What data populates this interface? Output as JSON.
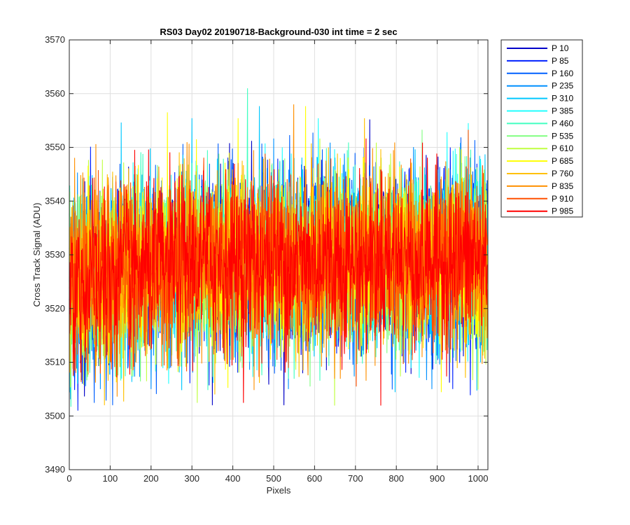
{
  "chart_data": {
    "type": "line",
    "title": "RS03 Day02 20190718-Background-030 int time = 2 sec",
    "xlabel": "Pixels",
    "ylabel": "Cross Track Signal (ADU)",
    "xlim": [
      0,
      1024
    ],
    "ylim": [
      3490,
      3570
    ],
    "xticks": [
      "0",
      "100",
      "200",
      "300",
      "400",
      "500",
      "600",
      "700",
      "800",
      "900",
      "1000"
    ],
    "yticks": [
      "3490",
      "3500",
      "3510",
      "3520",
      "3530",
      "3540",
      "3550",
      "3560",
      "3570"
    ],
    "grid": true,
    "legend_position": "outside-top-right",
    "n_points": 1024,
    "baseline_mean_left": 3524,
    "baseline_mean_right": 3529,
    "noise_std": 8,
    "series": [
      {
        "name": "P 10",
        "color": "#0000c8",
        "mean": 3528,
        "min": 3502,
        "max": 3558
      },
      {
        "name": "P 85",
        "color": "#0020ff",
        "mean": 3528,
        "min": 3501,
        "max": 3560
      },
      {
        "name": "P 160",
        "color": "#0060ff",
        "mean": 3528,
        "min": 3502,
        "max": 3566
      },
      {
        "name": "P 235",
        "color": "#0090ff",
        "mean": 3528,
        "min": 3505,
        "max": 3560
      },
      {
        "name": "P 310",
        "color": "#00c8ff",
        "mean": 3528,
        "min": 3503,
        "max": 3566
      },
      {
        "name": "P 385",
        "color": "#20ffff",
        "mean": 3528,
        "min": 3506,
        "max": 3567
      },
      {
        "name": "P 460",
        "color": "#40ffc0",
        "mean": 3528,
        "min": 3498,
        "max": 3561
      },
      {
        "name": "P 535",
        "color": "#80ff80",
        "mean": 3528,
        "min": 3497,
        "max": 3567
      },
      {
        "name": "P 610",
        "color": "#c0ff40",
        "mean": 3528,
        "min": 3501,
        "max": 3567
      },
      {
        "name": "P 685",
        "color": "#ffff00",
        "mean": 3528,
        "min": 3503,
        "max": 3563
      },
      {
        "name": "P 760",
        "color": "#ffc000",
        "mean": 3528,
        "min": 3502,
        "max": 3560
      },
      {
        "name": "P 835",
        "color": "#ff9000",
        "mean": 3528,
        "min": 3500,
        "max": 3558
      },
      {
        "name": "P 910",
        "color": "#ff5000",
        "mean": 3528,
        "min": 3500,
        "max": 3562
      },
      {
        "name": "P 985",
        "color": "#ff0000",
        "mean": 3528,
        "min": 3495,
        "max": 3568
      }
    ]
  }
}
